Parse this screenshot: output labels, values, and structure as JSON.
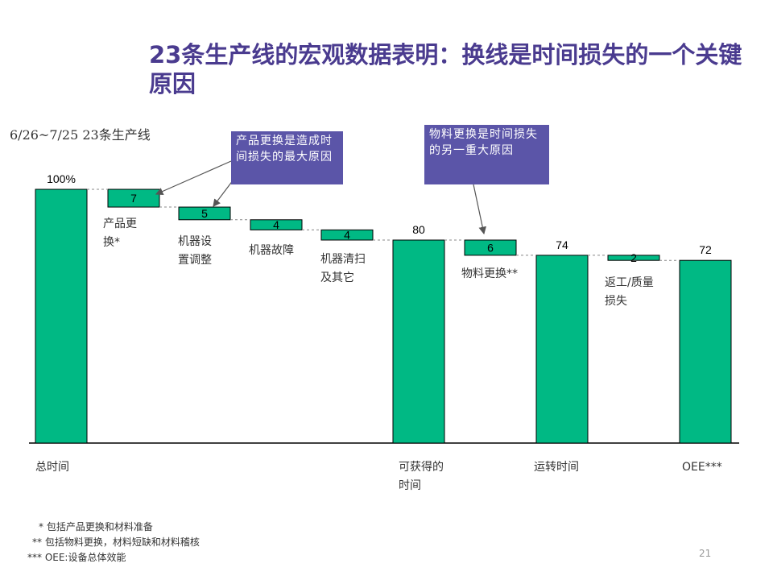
{
  "title": "23条生产线的宏观数据表明：换线是时间损失的一个关键原因",
  "subtitle": "6/26~7/25 23条生产线",
  "callouts": {
    "product_change": "产品更换是造成时间损失的最大原因",
    "material_change": "物料更换是时间损失的另一重大原因"
  },
  "footnotes": [
    "* 包括产品更换和材料准备",
    "** 包括物料更换，材料短缺和材料稽核",
    "*** OEE:设备总体效能"
  ],
  "page_number": "21",
  "colors": {
    "bar": "#00b984",
    "bar_stroke": "#000000",
    "title": "#4a3b8f",
    "callout": "#5b55a8"
  },
  "chart_data": {
    "type": "bar",
    "subtype": "waterfall",
    "ylim": [
      0,
      100
    ],
    "bars": [
      {
        "label": "总时间",
        "kind": "total",
        "value": 100,
        "value_label": "100%"
      },
      {
        "label": "产品更换*",
        "kind": "loss",
        "value": 7,
        "value_label": "7"
      },
      {
        "label": "机器设置调整",
        "kind": "loss",
        "value": 5,
        "value_label": "5"
      },
      {
        "label": "机器故障",
        "kind": "loss",
        "value": 4,
        "value_label": "4"
      },
      {
        "label": "机器清扫及其它",
        "kind": "loss",
        "value": 4,
        "value_label": "4"
      },
      {
        "label": "可获得的时间",
        "kind": "total",
        "value": 80,
        "value_label": "80"
      },
      {
        "label": "物料更换**",
        "kind": "loss",
        "value": 6,
        "value_label": "6"
      },
      {
        "label": "运转时间",
        "kind": "total",
        "value": 74,
        "value_label": "74"
      },
      {
        "label": "返工/质量损失",
        "kind": "loss",
        "value": 2,
        "value_label": "2"
      },
      {
        "label": "OEE***",
        "kind": "total",
        "value": 72,
        "value_label": "72"
      }
    ]
  }
}
